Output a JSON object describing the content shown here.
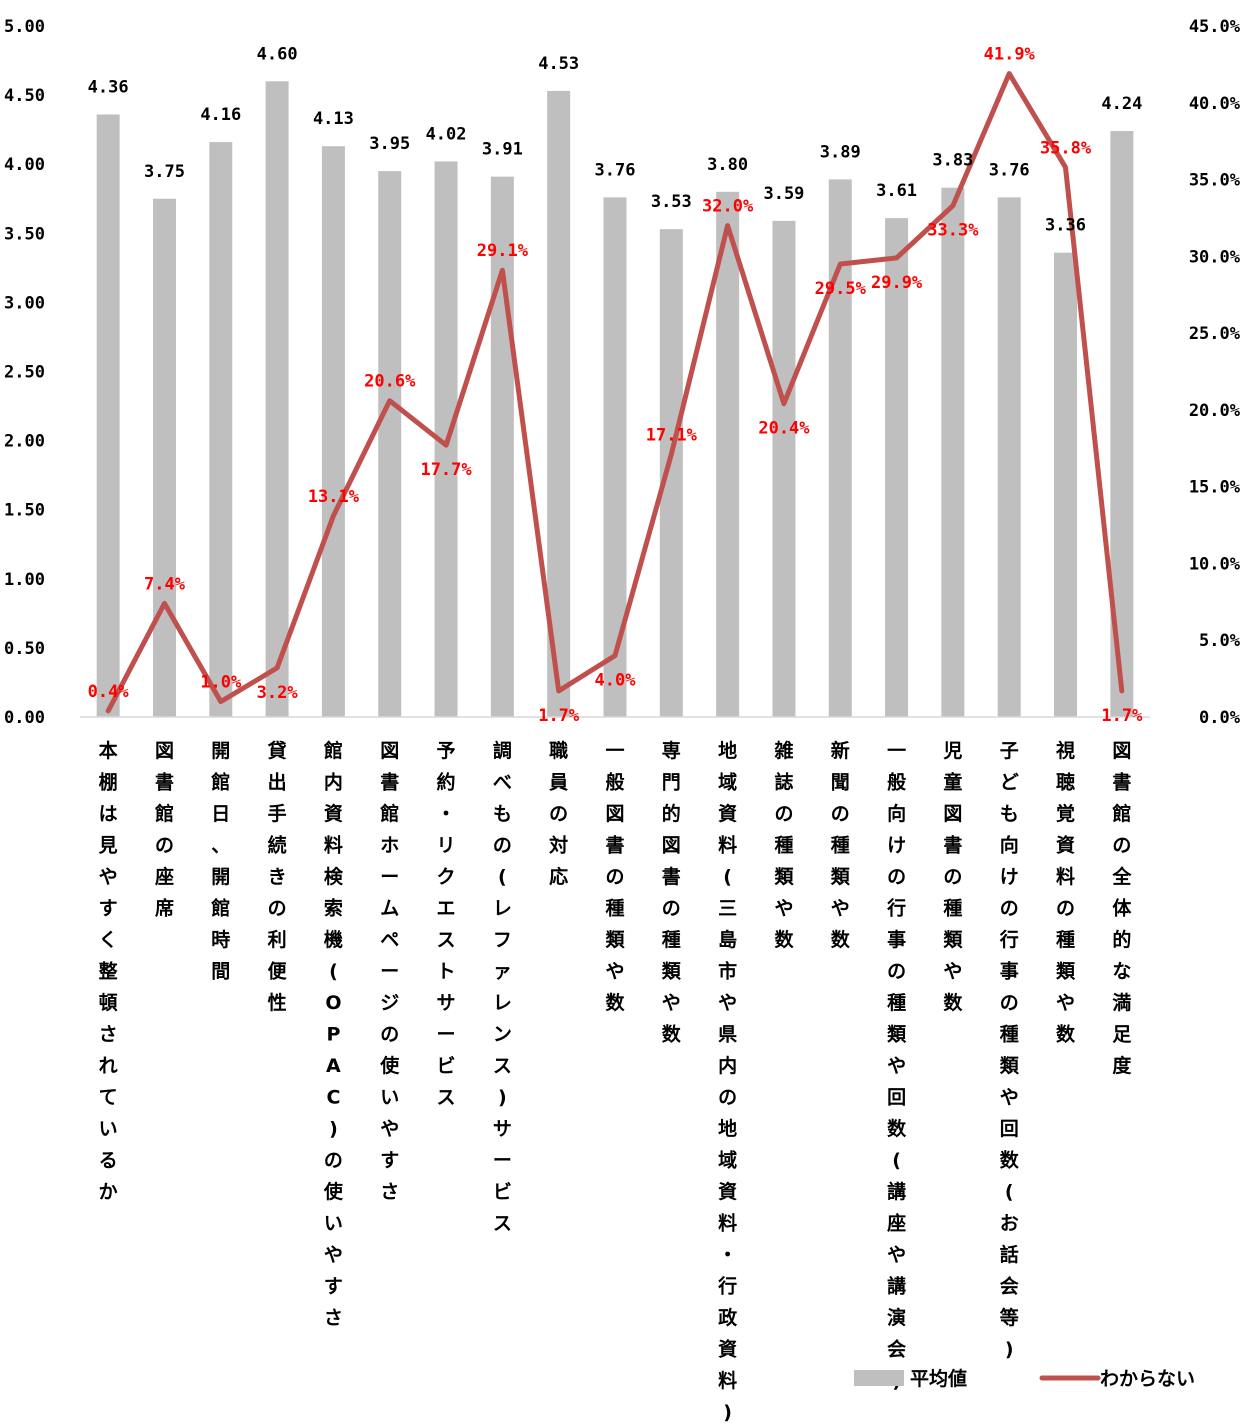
{
  "chart_data": {
    "type": "bar+line",
    "categories": [
      "本棚は見やすく整頓されているか",
      "図書館の座席",
      "開館日、開館時間",
      "貸出手続きの利便性",
      "館内資料検索機(OPAC)の使いやすさ",
      "図書館ホームページの使いやすさ",
      "予約・リクエストサービス",
      "調べもの(レファレンス)サービス",
      "職員の対応",
      "一般図書の種類や数",
      "専門的図書の種類や数",
      "地域資料(三島市や県内の地域資料・行政資料)",
      "雑誌の種類や数",
      "新聞の種類や数",
      "一般向けの行事の種類や回数(講座や講演会)",
      "児童図書の種類や数",
      "子ども向けの行事の種類や回数(お話会等)",
      "視聴覚資料の種類や数",
      "図書館の全体的な満足度"
    ],
    "series": [
      {
        "name": "平均値",
        "type": "bar",
        "axis": "left",
        "color": "#bfbfbf",
        "values": [
          4.36,
          3.75,
          4.16,
          4.6,
          4.13,
          3.95,
          4.02,
          3.91,
          4.53,
          3.76,
          3.53,
          3.8,
          3.59,
          3.89,
          3.61,
          3.83,
          3.76,
          3.36,
          4.24
        ],
        "labels": [
          "4.36",
          "3.75",
          "4.16",
          "4.60",
          "4.13",
          "3.95",
          "4.02",
          "3.91",
          "4.53",
          "3.76",
          "3.53",
          "3.80",
          "3.59",
          "3.89",
          "3.61",
          "3.83",
          "3.76",
          "3.36",
          "4.24"
        ]
      },
      {
        "name": "わからない",
        "type": "line",
        "axis": "right",
        "color": "#c0504d",
        "label_color": "#ff0000",
        "values": [
          0.4,
          7.4,
          1.0,
          3.2,
          13.1,
          20.6,
          17.7,
          29.1,
          1.7,
          4.0,
          17.1,
          32.0,
          20.4,
          29.5,
          29.9,
          33.3,
          41.9,
          35.8,
          1.7
        ],
        "labels": [
          "0.4%",
          "7.4%",
          "1.0%",
          "3.2%",
          "13.1%",
          "20.6%",
          "17.7%",
          "29.1%",
          "1.7%",
          "4.0%",
          "17.1%",
          "32.0%",
          "20.4%",
          "29.5%",
          "29.9%",
          "33.3%",
          "41.9%",
          "35.8%",
          "1.7%"
        ]
      }
    ],
    "y_left": {
      "min": 0,
      "max": 5,
      "step": 0.5,
      "tick_labels": [
        "0.00",
        "0.50",
        "1.00",
        "1.50",
        "2.00",
        "2.50",
        "3.00",
        "3.50",
        "4.00",
        "4.50",
        "5.00"
      ]
    },
    "y_right": {
      "min": 0,
      "max": 45,
      "step": 5,
      "tick_labels": [
        "0.0%",
        "5.0%",
        "10.0%",
        "15.0%",
        "20.0%",
        "25.0%",
        "30.0%",
        "35.0%",
        "40.0%",
        "45.0%"
      ]
    },
    "grid": false,
    "legend": {
      "position": "bottom-right"
    }
  }
}
